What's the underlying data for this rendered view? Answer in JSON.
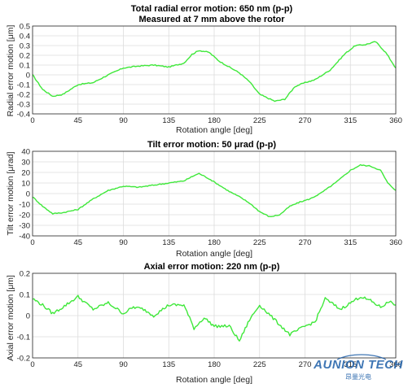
{
  "chart_data": [
    {
      "type": "line",
      "title": "Total radial error motion: 650 nm (p-p)",
      "subtitle": "Measured at 7 mm above the rotor",
      "xlabel": "Rotation angle [deg]",
      "ylabel": "Radial error motion [μm]",
      "xlim": [
        0,
        360
      ],
      "ylim": [
        -0.4,
        0.5
      ],
      "xticks": [
        0,
        45,
        90,
        135,
        180,
        225,
        270,
        315,
        360
      ],
      "yticks": [
        -0.4,
        -0.3,
        -0.2,
        -0.1,
        0,
        0.1,
        0.2,
        0.3,
        0.4,
        0.5
      ],
      "ytick_labels": [
        "-0.4",
        "-0.3",
        "-0.2",
        "-0.1",
        "0",
        "0.1",
        "0.2",
        "0.3",
        "0.4",
        "0.5"
      ],
      "grid": true,
      "color": "#3fe83a",
      "x": [
        0,
        10,
        20,
        30,
        45,
        60,
        75,
        90,
        105,
        120,
        135,
        150,
        158,
        165,
        175,
        185,
        195,
        205,
        215,
        225,
        240,
        250,
        260,
        270,
        280,
        295,
        310,
        320,
        330,
        340,
        350,
        360
      ],
      "y": [
        0.0,
        -0.15,
        -0.22,
        -0.2,
        -0.1,
        -0.08,
        0.0,
        0.07,
        0.09,
        0.1,
        0.08,
        0.12,
        0.21,
        0.25,
        0.23,
        0.14,
        0.08,
        0.02,
        -0.07,
        -0.2,
        -0.27,
        -0.25,
        -0.12,
        -0.08,
        -0.05,
        0.05,
        0.22,
        0.3,
        0.31,
        0.34,
        0.23,
        0.07
      ]
    },
    {
      "type": "line",
      "title": "Tilt error motion: 50 μrad (p-p)",
      "xlabel": "Rotation angle [deg]",
      "ylabel": "Tilt error motion [μrad]",
      "xlim": [
        0,
        360
      ],
      "ylim": [
        -40,
        40
      ],
      "xticks": [
        0,
        45,
        90,
        135,
        180,
        225,
        270,
        315,
        360
      ],
      "yticks": [
        -40,
        -30,
        -20,
        -10,
        0,
        10,
        20,
        30,
        40
      ],
      "ytick_labels": [
        "-40",
        "-30",
        "-20",
        "-10",
        "0",
        "10",
        "20",
        "30",
        "40"
      ],
      "grid": true,
      "color": "#3fe83a",
      "x": [
        0,
        10,
        20,
        30,
        45,
        60,
        75,
        90,
        105,
        120,
        135,
        150,
        160,
        165,
        175,
        185,
        195,
        205,
        215,
        225,
        235,
        245,
        255,
        265,
        275,
        285,
        300,
        315,
        325,
        335,
        345,
        352,
        360
      ],
      "y": [
        -3,
        -12,
        -19,
        -18,
        -15,
        -5,
        3,
        7,
        6,
        8,
        10,
        12,
        17,
        19,
        14,
        8,
        2,
        -3,
        -9,
        -17,
        -22,
        -20,
        -12,
        -8,
        -5,
        0,
        10,
        22,
        27,
        26,
        22,
        10,
        3
      ]
    },
    {
      "type": "line",
      "title": "Axial error motion: 220 nm (p-p)",
      "xlabel": "Rotation angle [deg]",
      "ylabel": "Axial error motion [μm]",
      "xlim": [
        0,
        360
      ],
      "ylim": [
        -0.2,
        0.2
      ],
      "xticks": [
        0,
        45,
        90,
        135,
        180,
        225,
        270,
        315,
        360
      ],
      "yticks": [
        -0.2,
        -0.1,
        0,
        0.1,
        0.2
      ],
      "ytick_labels": [
        "-0.2",
        "-0.1",
        "0",
        "0.1",
        "0.2"
      ],
      "grid": true,
      "color": "#3fe83a",
      "x": [
        0,
        10,
        20,
        30,
        45,
        60,
        75,
        90,
        100,
        110,
        120,
        135,
        150,
        160,
        170,
        180,
        195,
        205,
        215,
        225,
        240,
        255,
        270,
        280,
        290,
        305,
        315,
        325,
        335,
        345,
        355,
        360
      ],
      "y": [
        0.08,
        0.05,
        0.01,
        0.04,
        0.09,
        0.03,
        0.06,
        0.01,
        0.04,
        0.03,
        0.0,
        0.05,
        0.05,
        -0.06,
        -0.01,
        -0.05,
        -0.05,
        -0.12,
        -0.02,
        0.05,
        -0.02,
        -0.09,
        -0.05,
        -0.03,
        0.08,
        0.03,
        0.06,
        0.09,
        0.07,
        0.04,
        0.07,
        0.05
      ]
    }
  ],
  "watermark": {
    "brand": "AUNION TECH",
    "sub": "昂量光电",
    "color": "#1e5fa8"
  }
}
